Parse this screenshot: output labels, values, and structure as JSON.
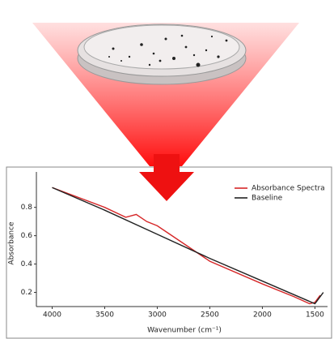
{
  "chart_data": {
    "type": "line",
    "x_label": "Wavenumber (cm⁻¹)",
    "y_label": "Absorbance",
    "xlim": [
      4150,
      1380
    ],
    "ylim": [
      0.1,
      1.05
    ],
    "xticks": [
      4000,
      3500,
      3000,
      2500,
      2000,
      1500
    ],
    "yticks": [
      0.2,
      0.4,
      0.6,
      0.8
    ],
    "legend": "upper right",
    "series": [
      {
        "name": "Absorbance Spectra",
        "color": "#d62728",
        "x": [
          4000,
          3500,
          3300,
          3200,
          3100,
          3000,
          2900,
          2500,
          2000,
          1700,
          1550,
          1500,
          1450
        ],
        "values": [
          0.94,
          0.8,
          0.73,
          0.75,
          0.7,
          0.67,
          0.62,
          0.42,
          0.26,
          0.17,
          0.12,
          0.13,
          0.18
        ]
      },
      {
        "name": "Baseline",
        "color": "#222222",
        "x": [
          4000,
          3500,
          3000,
          2500,
          2000,
          1500,
          1420
        ],
        "values": [
          0.94,
          0.78,
          0.61,
          0.44,
          0.28,
          0.12,
          0.2
        ]
      }
    ]
  }
}
